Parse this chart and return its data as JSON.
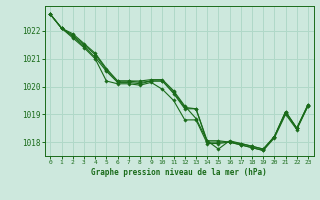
{
  "title": "Graphe pression niveau de la mer (hPa)",
  "background_color": "#cde8dd",
  "grid_color": "#b0d8c8",
  "line_color": "#1a6b1a",
  "xlim": [
    -0.5,
    23.5
  ],
  "ylim": [
    1017.5,
    1022.9
  ],
  "yticks": [
    1018,
    1019,
    1020,
    1021,
    1022
  ],
  "xticks": [
    0,
    1,
    2,
    3,
    4,
    5,
    6,
    7,
    8,
    9,
    10,
    11,
    12,
    13,
    14,
    15,
    16,
    17,
    18,
    19,
    20,
    21,
    22,
    23
  ],
  "series": [
    [
      1022.6,
      1022.1,
      1021.9,
      1021.55,
      1021.2,
      1020.65,
      1020.2,
      1020.2,
      1020.2,
      1020.25,
      1020.25,
      1019.85,
      1019.3,
      1018.85,
      1018.05,
      1017.75,
      1018.05,
      1017.95,
      1017.85,
      1017.75,
      1018.2,
      1019.1,
      1018.5,
      1019.35
    ],
    [
      1022.6,
      1022.1,
      1021.85,
      1021.5,
      1021.15,
      1020.6,
      1020.2,
      1020.2,
      1020.15,
      1020.2,
      1020.2,
      1019.8,
      1019.25,
      1019.2,
      1018.0,
      1018.0,
      1018.0,
      1017.9,
      1017.8,
      1017.7,
      1018.2,
      1019.1,
      1018.5,
      1019.35
    ],
    [
      1022.6,
      1022.1,
      1021.8,
      1021.45,
      1021.05,
      1020.55,
      1020.15,
      1020.15,
      1020.1,
      1020.2,
      1020.2,
      1019.75,
      1019.2,
      1019.2,
      1018.05,
      1018.05,
      1018.0,
      1017.95,
      1017.85,
      1017.75,
      1018.2,
      1019.05,
      1018.5,
      1019.3
    ],
    [
      1022.6,
      1022.1,
      1021.75,
      1021.4,
      1021.0,
      1020.2,
      1020.1,
      1020.1,
      1020.05,
      1020.15,
      1019.9,
      1019.5,
      1018.8,
      1018.8,
      1017.95,
      1017.95,
      1018.0,
      1017.9,
      1017.8,
      1017.7,
      1018.15,
      1019.0,
      1018.45,
      1019.3
    ]
  ]
}
